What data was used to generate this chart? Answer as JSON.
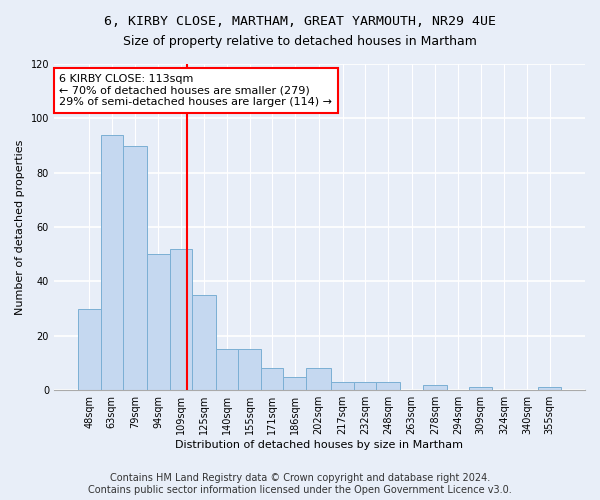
{
  "title1": "6, KIRBY CLOSE, MARTHAM, GREAT YARMOUTH, NR29 4UE",
  "title2": "Size of property relative to detached houses in Martham",
  "xlabel": "Distribution of detached houses by size in Martham",
  "ylabel": "Number of detached properties",
  "bar_color": "#c5d8f0",
  "bar_edge_color": "#7bafd4",
  "background_color": "#e8eef8",
  "fig_background_color": "#e8eef8",
  "grid_color": "#ffffff",
  "annotation_line_color": "red",
  "annotation_text": "6 KIRBY CLOSE: 113sqm\n← 70% of detached houses are smaller (279)\n29% of semi-detached houses are larger (114) →",
  "property_size": 113,
  "tick_labels": [
    "48sqm",
    "63sqm",
    "79sqm",
    "94sqm",
    "109sqm",
    "125sqm",
    "140sqm",
    "155sqm",
    "171sqm",
    "186sqm",
    "202sqm",
    "217sqm",
    "232sqm",
    "248sqm",
    "263sqm",
    "278sqm",
    "294sqm",
    "309sqm",
    "324sqm",
    "340sqm",
    "355sqm"
  ],
  "bin_edges": [
    40.5,
    55.5,
    70.5,
    86.5,
    101.5,
    116.5,
    132.5,
    147.5,
    162.5,
    177.5,
    192.5,
    209.5,
    224.5,
    239.5,
    255.5,
    270.5,
    286.5,
    301.5,
    316.5,
    332.5,
    347.5,
    362.5
  ],
  "bar_heights": [
    30,
    94,
    90,
    50,
    52,
    35,
    15,
    15,
    8,
    5,
    8,
    3,
    3,
    3,
    0,
    2,
    0,
    1,
    0,
    0,
    1
  ],
  "ylim": [
    0,
    120
  ],
  "yticks": [
    0,
    20,
    40,
    60,
    80,
    100,
    120
  ],
  "footer": "Contains HM Land Registry data © Crown copyright and database right 2024.\nContains public sector information licensed under the Open Government Licence v3.0.",
  "title_fontsize": 9.5,
  "subtitle_fontsize": 9,
  "axis_label_fontsize": 8,
  "tick_fontsize": 7,
  "footer_fontsize": 7,
  "annot_fontsize": 8
}
